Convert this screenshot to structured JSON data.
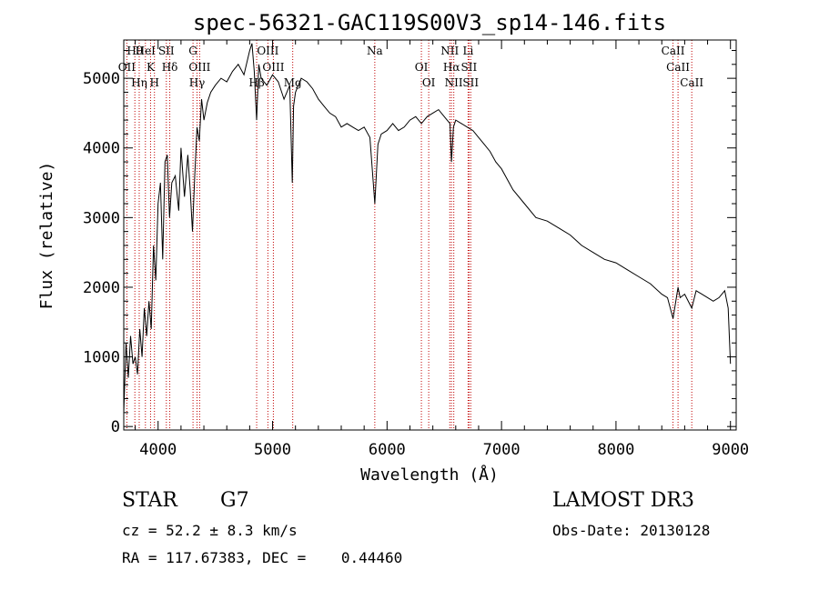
{
  "chart_data": {
    "type": "line",
    "title": "spec-56321-GAC119S00V3_sp14-146.fits",
    "xlabel": "Wavelength (Å)",
    "ylabel": "Flux (relative)",
    "xlim": [
      3700,
      9050
    ],
    "ylim": [
      -50,
      5550
    ],
    "xticks": [
      4000,
      5000,
      6000,
      7000,
      8000,
      9000
    ],
    "yticks": [
      0,
      1000,
      2000,
      3000,
      4000,
      5000
    ],
    "grid": false,
    "series": [
      {
        "x": [
          3700,
          3720,
          3740,
          3760,
          3780,
          3800,
          3820,
          3840,
          3860,
          3880,
          3900,
          3920,
          3940,
          3960,
          3980,
          4000,
          4020,
          4040,
          4060,
          4080,
          4100,
          4120,
          4150,
          4180,
          4200,
          4230,
          4260,
          4280,
          4300,
          4320,
          4340,
          4360,
          4380,
          4400,
          4430,
          4460,
          4500,
          4550,
          4600,
          4650,
          4700,
          4750,
          4800,
          4820,
          4840,
          4861,
          4880,
          4900,
          4950,
          5000,
          5050,
          5100,
          5150,
          5172,
          5183,
          5200,
          5250,
          5300,
          5350,
          5400,
          5450,
          5500,
          5550,
          5600,
          5650,
          5700,
          5750,
          5800,
          5850,
          5893,
          5920,
          5950,
          6000,
          6050,
          6100,
          6150,
          6200,
          6250,
          6300,
          6350,
          6400,
          6450,
          6500,
          6550,
          6563,
          6580,
          6600,
          6650,
          6700,
          6750,
          6800,
          6850,
          6900,
          6950,
          7000,
          7100,
          7200,
          7300,
          7400,
          7500,
          7600,
          7700,
          7800,
          7900,
          8000,
          8100,
          8200,
          8300,
          8400,
          8450,
          8498,
          8542,
          8560,
          8600,
          8662,
          8700,
          8750,
          8800,
          8850,
          8900,
          8950,
          8980,
          9000
        ],
        "values": [
          200,
          1200,
          700,
          1300,
          900,
          1000,
          750,
          1400,
          1000,
          1700,
          1300,
          1800,
          1400,
          2600,
          2100,
          3200,
          3500,
          2400,
          3800,
          3900,
          3000,
          3500,
          3600,
          3100,
          4000,
          3300,
          3900,
          3400,
          2800,
          3600,
          4300,
          4100,
          4700,
          4400,
          4650,
          4800,
          4900,
          5000,
          4950,
          5100,
          5200,
          5050,
          5400,
          5500,
          5100,
          4400,
          5200,
          5000,
          4900,
          5050,
          4950,
          4700,
          4900,
          3500,
          4600,
          4800,
          5000,
          4950,
          4850,
          4700,
          4600,
          4500,
          4450,
          4300,
          4350,
          4300,
          4250,
          4300,
          4150,
          3200,
          4050,
          4200,
          4250,
          4350,
          4250,
          4300,
          4400,
          4450,
          4350,
          4450,
          4500,
          4550,
          4450,
          4350,
          3800,
          4300,
          4400,
          4350,
          4300,
          4250,
          4150,
          4050,
          3950,
          3800,
          3700,
          3400,
          3200,
          3000,
          2950,
          2850,
          2750,
          2600,
          2500,
          2400,
          2350,
          2250,
          2150,
          2050,
          1900,
          1850,
          1550,
          2000,
          1850,
          1900,
          1700,
          1950,
          1900,
          1850,
          1800,
          1850,
          1950,
          1700,
          900
        ]
      }
    ],
    "spectral_lines": [
      {
        "label": "Hθ",
        "x": 3797
      },
      {
        "label": "OII",
        "x": 3727
      },
      {
        "label": "Hη",
        "x": 3835
      },
      {
        "label": "HeI",
        "x": 3889
      },
      {
        "label": "K",
        "x": 3934
      },
      {
        "label": "H",
        "x": 3968
      },
      {
        "label": "SII",
        "x": 4072
      },
      {
        "label": "Hδ",
        "x": 4102
      },
      {
        "label": "Hγ",
        "x": 4340
      },
      {
        "label": "G",
        "x": 4305
      },
      {
        "label": "OIII",
        "x": 4363
      },
      {
        "label": "Hβ",
        "x": 4861
      },
      {
        "label": "OIII",
        "x": 4959
      },
      {
        "label": "OIII",
        "x": 5007
      },
      {
        "label": "Mg",
        "x": 5176
      },
      {
        "label": "Na",
        "x": 5893
      },
      {
        "label": "OI",
        "x": 6300
      },
      {
        "label": "OI",
        "x": 6364
      },
      {
        "label": "NII",
        "x": 6548
      },
      {
        "label": "Hα",
        "x": 6563
      },
      {
        "label": "NII",
        "x": 6583
      },
      {
        "label": "Li",
        "x": 6708
      },
      {
        "label": "SII",
        "x": 6716
      },
      {
        "label": "SII",
        "x": 6731
      },
      {
        "label": "CaII",
        "x": 8498
      },
      {
        "label": "CaII",
        "x": 8542
      },
      {
        "label": "CaII",
        "x": 8662
      }
    ]
  },
  "info": {
    "class": "STAR",
    "subclass": "G7",
    "survey": "LAMOST DR3",
    "cz": "cz = 52.2 ± 8.3 km/s",
    "obs_date": "Obs-Date: 20130128",
    "coords": "RA = 117.67383, DEC =    0.44460"
  },
  "colors": {
    "line_marker": "#c00000",
    "spectrum": "#000000"
  }
}
